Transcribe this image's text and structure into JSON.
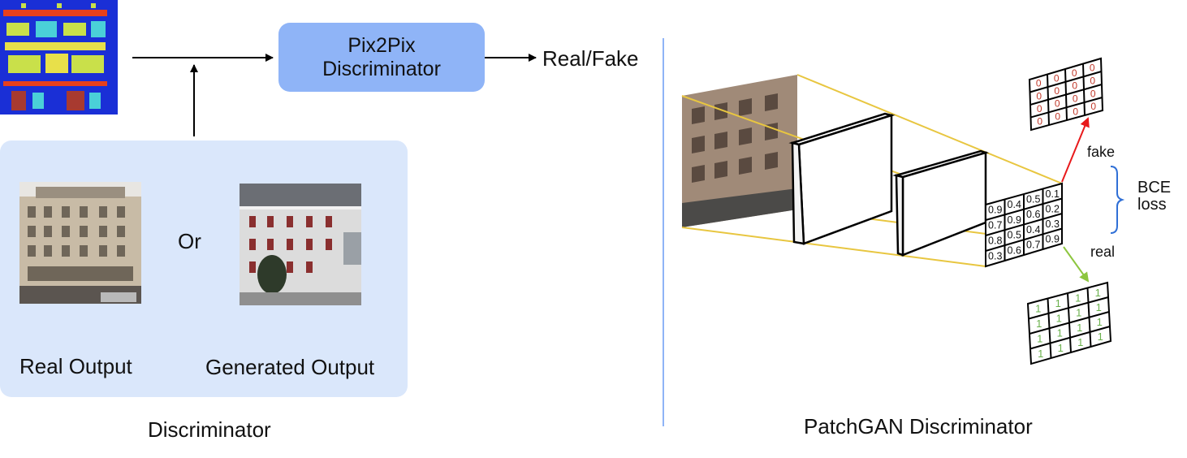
{
  "left": {
    "discriminator_box": {
      "line1": "Pix2Pix",
      "line2": "Discriminator"
    },
    "output_label": "Real/Fake",
    "or_label": "Or",
    "real_output_label": "Real Output",
    "generated_output_label": "Generated Output",
    "caption": "Discriminator"
  },
  "right": {
    "caption": "PatchGAN Discriminator",
    "fake_label": "fake",
    "real_label": "real",
    "loss_line1": "BCE",
    "loss_line2": "loss",
    "patch_values": [
      [
        "0.9",
        "0.4",
        "0.5",
        "0.1"
      ],
      [
        "0.7",
        "0.9",
        "0.6",
        "0.2"
      ],
      [
        "0.8",
        "0.5",
        "0.4",
        "0.3"
      ],
      [
        "0.3",
        "0.6",
        "0.7",
        "0.9"
      ]
    ],
    "fake_target": "0",
    "real_target": "1"
  },
  "colors": {
    "box_blue": "#8fb4f7",
    "panel_blue": "#dae7fb",
    "frustum_yellow": "#e8c640",
    "fake_arrow": "#e8191b",
    "real_arrow": "#8dc63f",
    "fake_digit": "#c0392b",
    "real_digit": "#6ab04c"
  }
}
